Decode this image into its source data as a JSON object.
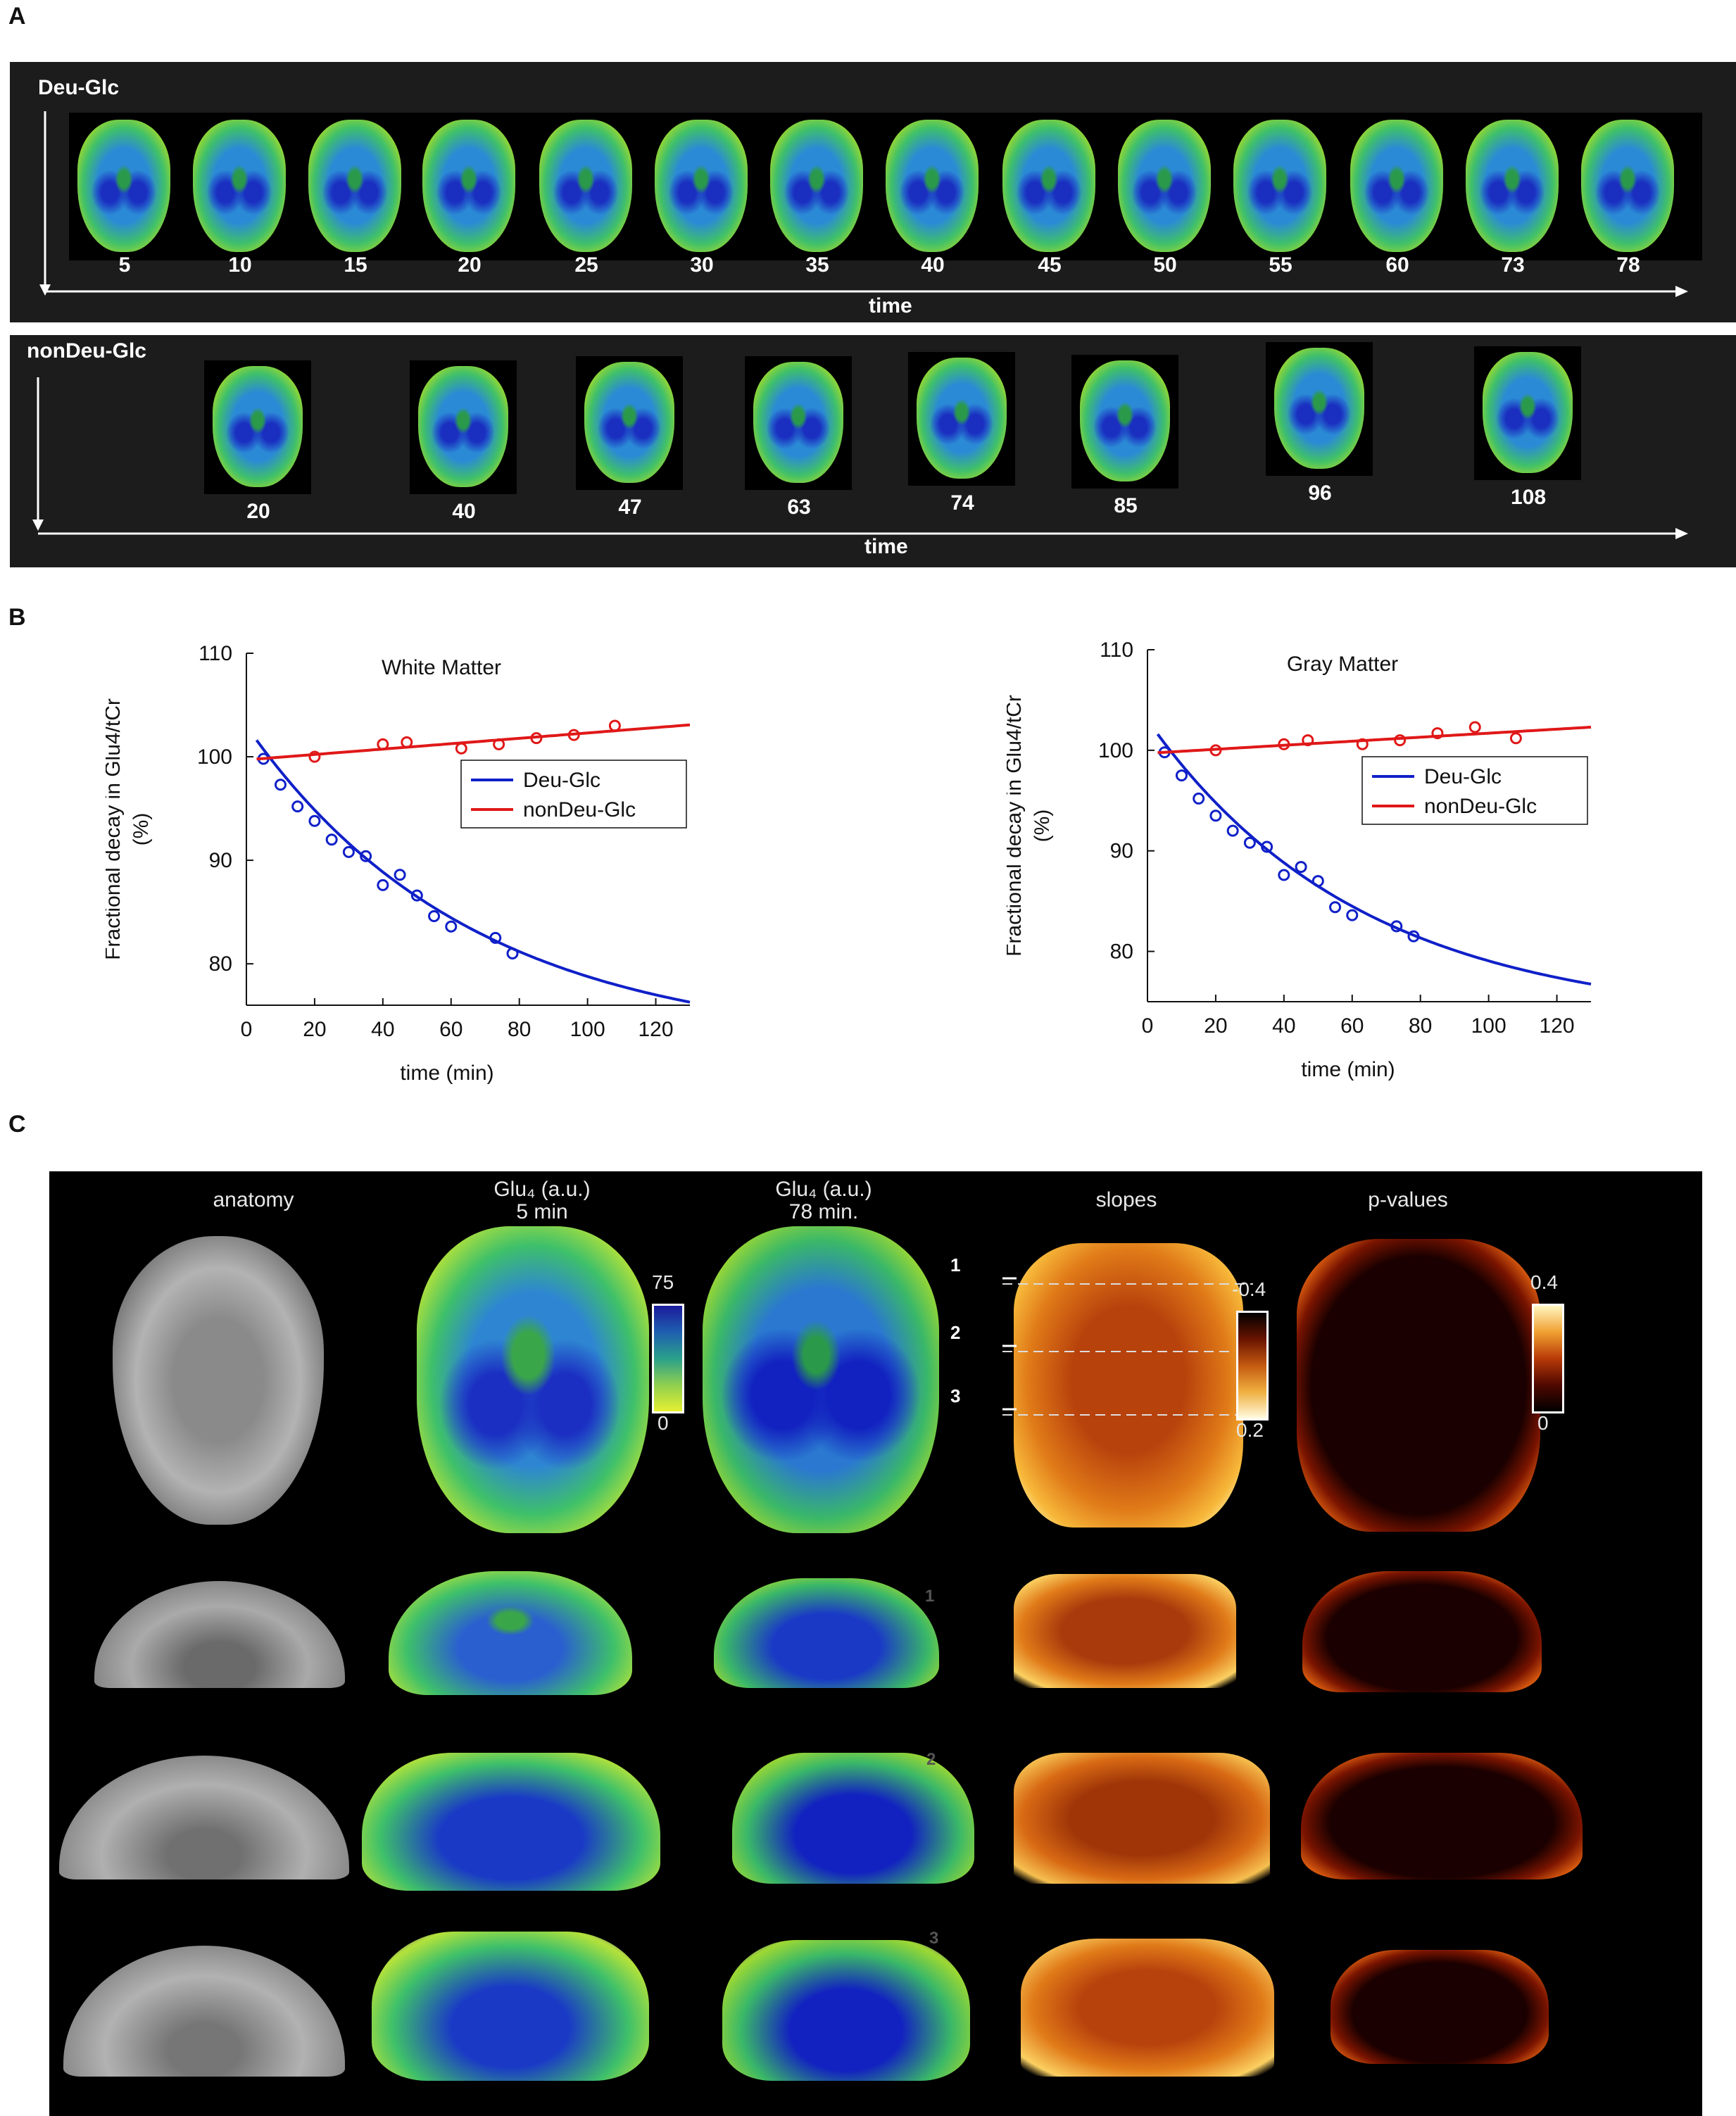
{
  "panel_a": {
    "letter": "A",
    "deu": {
      "label": "Deu-Glc",
      "times": [
        "5",
        "10",
        "15",
        "20",
        "25",
        "30",
        "35",
        "40",
        "45",
        "50",
        "55",
        "60",
        "73",
        "78"
      ],
      "axis_label": "time"
    },
    "nondeu": {
      "label": "nonDeu-Glc",
      "times": [
        "20",
        "40",
        "47",
        "63",
        "74",
        "85",
        "96",
        "108"
      ],
      "axis_label": "time"
    }
  },
  "panel_b": {
    "letter": "B"
  },
  "panel_c": {
    "letter": "C",
    "headers": {
      "anatomy": "anatomy",
      "glu5_line1": "Glu₄ (a.u.)",
      "glu5_line2": "5 min",
      "glu78_line1": "Glu₄ (a.u.)",
      "glu78_line2": "78 min.",
      "slopes": "slopes",
      "pvalues": "p-values"
    },
    "colorbar_glu": {
      "top": "75",
      "bottom": "0"
    },
    "colorbar_slopes": {
      "top": "-0.4",
      "bottom": "0.2"
    },
    "colorbar_p": {
      "top": "0.4",
      "bottom": "0"
    },
    "slice_labels": [
      "1",
      "2",
      "3"
    ]
  },
  "colors": {
    "deu": "#1020c8",
    "nondeu": "#e01818",
    "panel_bg": "#1c1c1c"
  },
  "chart_data": [
    {
      "type": "scatter",
      "title": "White Matter",
      "xlabel": "time (min)",
      "ylabel": "Fractional decay in Glu4/tCr (%)",
      "ylabel_line1": "Fractional decay in Glu4/tCr",
      "ylabel_line2": "(%)",
      "xlim": [
        0,
        130
      ],
      "ylim": [
        76,
        110
      ],
      "xticks": [
        0,
        20,
        40,
        60,
        80,
        100,
        120
      ],
      "yticks": [
        80,
        90,
        100,
        110
      ],
      "legend_position": "center-right",
      "series": [
        {
          "name": "Deu-Glc",
          "color": "#1020c8",
          "x": [
            5,
            10,
            15,
            20,
            25,
            30,
            35,
            40,
            45,
            50,
            55,
            60,
            73,
            78
          ],
          "y": [
            99.8,
            97.3,
            95.2,
            93.8,
            92.0,
            90.8,
            90.4,
            87.6,
            88.6,
            86.6,
            84.6,
            83.6,
            82.5,
            81.0
          ],
          "fit": {
            "model": "exponential",
            "a": 101.6,
            "plateau": 72.0,
            "k": 0.0152
          }
        },
        {
          "name": "nonDeu-Glc",
          "color": "#e01818",
          "x": [
            20,
            40,
            47,
            63,
            74,
            85,
            96,
            108
          ],
          "y": [
            100.0,
            101.2,
            101.4,
            100.8,
            101.2,
            101.8,
            102.1,
            103.0
          ],
          "fit": {
            "model": "linear",
            "intercept": 99.7,
            "slope": 0.026
          }
        }
      ]
    },
    {
      "type": "scatter",
      "title": "Gray Matter",
      "xlabel": "time (min)",
      "ylabel": "Fractional decay in Glu4/tCr (%)",
      "ylabel_line1": "Fractional decay in Glu4/tCr",
      "ylabel_line2": "(%)",
      "xlim": [
        0,
        130
      ],
      "ylim": [
        75,
        110
      ],
      "xticks": [
        0,
        20,
        40,
        60,
        80,
        100,
        120
      ],
      "yticks": [
        80,
        90,
        100,
        110
      ],
      "legend_position": "center-right",
      "series": [
        {
          "name": "Deu-Glc",
          "color": "#1020c8",
          "x": [
            5,
            10,
            15,
            20,
            25,
            30,
            35,
            40,
            45,
            50,
            55,
            60,
            73,
            78
          ],
          "y": [
            99.8,
            97.5,
            95.2,
            93.5,
            92.0,
            90.8,
            90.4,
            87.6,
            88.4,
            87.0,
            84.4,
            83.6,
            82.5,
            81.5
          ],
          "fit": {
            "model": "exponential",
            "a": 101.6,
            "plateau": 73.0,
            "k": 0.016
          }
        },
        {
          "name": "nonDeu-Glc",
          "color": "#e01818",
          "x": [
            20,
            40,
            47,
            63,
            74,
            85,
            96,
            108
          ],
          "y": [
            100.0,
            100.6,
            101.0,
            100.6,
            101.0,
            101.7,
            102.3,
            101.2
          ],
          "fit": {
            "model": "linear",
            "intercept": 99.7,
            "slope": 0.02
          }
        }
      ]
    }
  ]
}
